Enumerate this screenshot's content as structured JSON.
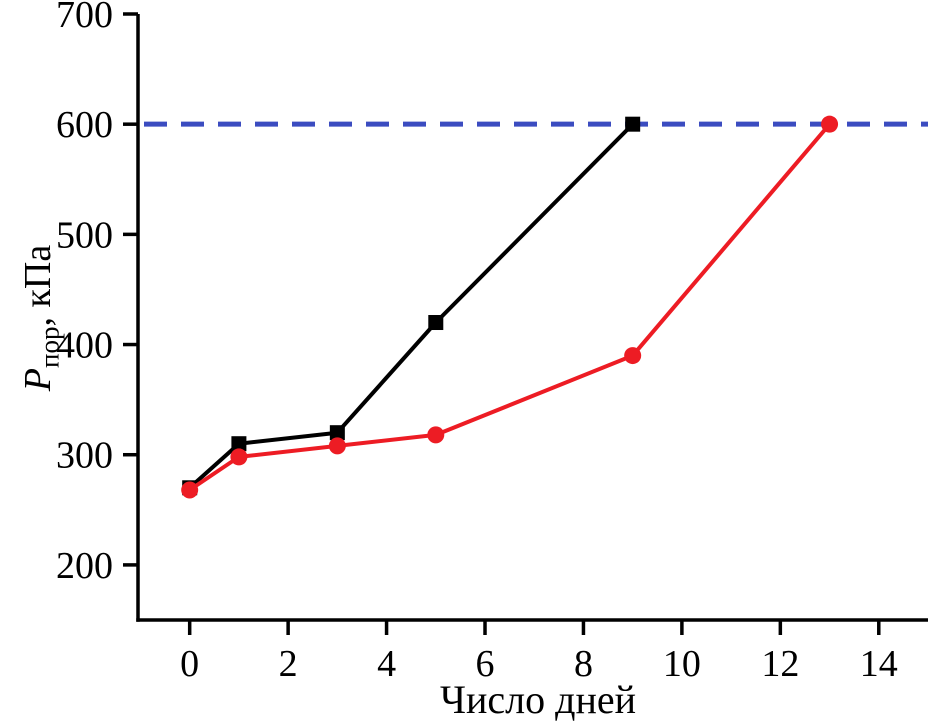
{
  "chart_data": {
    "type": "line",
    "title": "",
    "xlabel": "Число дней",
    "ylabel": "Pпор, кПа",
    "ylabel_parts": {
      "symbol": "P",
      "subscript": "пор",
      "suffix": ", кПа"
    },
    "xlim": [
      -1.05,
      15.0
    ],
    "ylim": [
      150,
      700
    ],
    "xticks": [
      0,
      2,
      4,
      6,
      8,
      10,
      12,
      14
    ],
    "yticks": [
      200,
      300,
      400,
      500,
      600,
      700
    ],
    "grid": false,
    "legend": "none",
    "axis_color": "#000000",
    "reference_line": {
      "y": 600,
      "color": "#3b4cc0",
      "style": "dashed"
    },
    "series": [
      {
        "name": "black-squares",
        "color": "#000000",
        "marker": "square",
        "points": [
          [
            0,
            270
          ],
          [
            1,
            310
          ],
          [
            3,
            320
          ],
          [
            5,
            420
          ],
          [
            9,
            600
          ]
        ]
      },
      {
        "name": "red-circles",
        "color": "#ed1c24",
        "marker": "circle",
        "points": [
          [
            0,
            268
          ],
          [
            1,
            298
          ],
          [
            3,
            308
          ],
          [
            5,
            318
          ],
          [
            9,
            390
          ],
          [
            13,
            600
          ]
        ]
      }
    ]
  }
}
